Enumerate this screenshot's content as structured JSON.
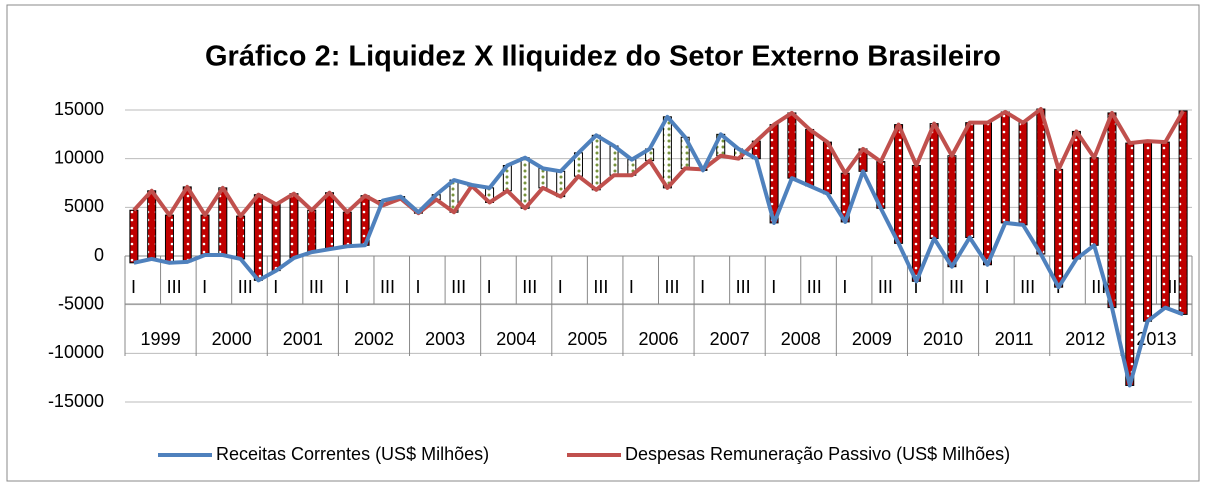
{
  "chart_data": {
    "type": "line",
    "title": "Gráfico 2: Liquidez X Iliquidez do Setor Externo Brasileiro",
    "categories": [
      "I",
      null,
      "III",
      null,
      "I",
      null,
      "III",
      null,
      "I",
      null,
      "III",
      null,
      "I",
      null,
      "III",
      null,
      "I",
      null,
      "III",
      null,
      "I",
      null,
      "III",
      null,
      "I",
      null,
      "III",
      null,
      "I",
      null,
      "III",
      null,
      "I",
      null,
      "III",
      null,
      "I",
      null,
      "III",
      null,
      "I",
      null,
      "III",
      null,
      "I",
      null,
      "III",
      null,
      "I",
      null,
      "III",
      null,
      "I",
      null,
      "III",
      null,
      "I",
      null,
      "III",
      null
    ],
    "category_groups": [
      "1999",
      "2000",
      "2001",
      "2002",
      "2003",
      "2004",
      "2005",
      "2006",
      "2007",
      "2008",
      "2009",
      "2010",
      "2011",
      "2012",
      "2013"
    ],
    "series": [
      {
        "name": "Receitas Correntes (US$ Milhões)",
        "color": "#4f81bd",
        "values": [
          -700,
          -300,
          -700,
          -600,
          100,
          100,
          -300,
          -2500,
          -1500,
          -200,
          400,
          700,
          1000,
          1100,
          5700,
          6100,
          4500,
          6300,
          7800,
          7300,
          7000,
          9300,
          10100,
          9000,
          8700,
          10600,
          12400,
          11300,
          9900,
          11000,
          14300,
          12200,
          8800,
          12500,
          11000,
          10000,
          3400,
          8000,
          7200,
          6400,
          3500,
          8700,
          4900,
          1300,
          -2600,
          1800,
          -1100,
          1900,
          -900,
          3400,
          3200,
          200,
          -3200,
          -300,
          1100,
          -5300,
          -13300,
          -6700,
          -5300,
          -6000
        ]
      },
      {
        "name": "Despesas Remuneração Passivo (US$ Milhões)",
        "color": "#c0504d",
        "values": [
          4700,
          6700,
          4200,
          7100,
          4200,
          7000,
          4100,
          6300,
          5300,
          6400,
          4700,
          6500,
          4500,
          6200,
          5200,
          5900,
          4400,
          5800,
          4500,
          7200,
          5500,
          6700,
          4900,
          7000,
          6100,
          8200,
          6800,
          8300,
          8300,
          9800,
          7000,
          9000,
          8900,
          10300,
          10000,
          11800,
          13500,
          14700,
          13000,
          11700,
          8500,
          11000,
          9700,
          13500,
          9300,
          13600,
          10300,
          13700,
          13700,
          14800,
          13700,
          15100,
          8900,
          12800,
          10100,
          14700,
          11600,
          11800,
          11700,
          14900
        ]
      }
    ],
    "ylim": [
      -15000,
      15000
    ],
    "yticks": [
      -15000,
      -10000,
      -5000,
      0,
      5000,
      10000,
      15000
    ],
    "grid": true,
    "legend": "bottom"
  }
}
